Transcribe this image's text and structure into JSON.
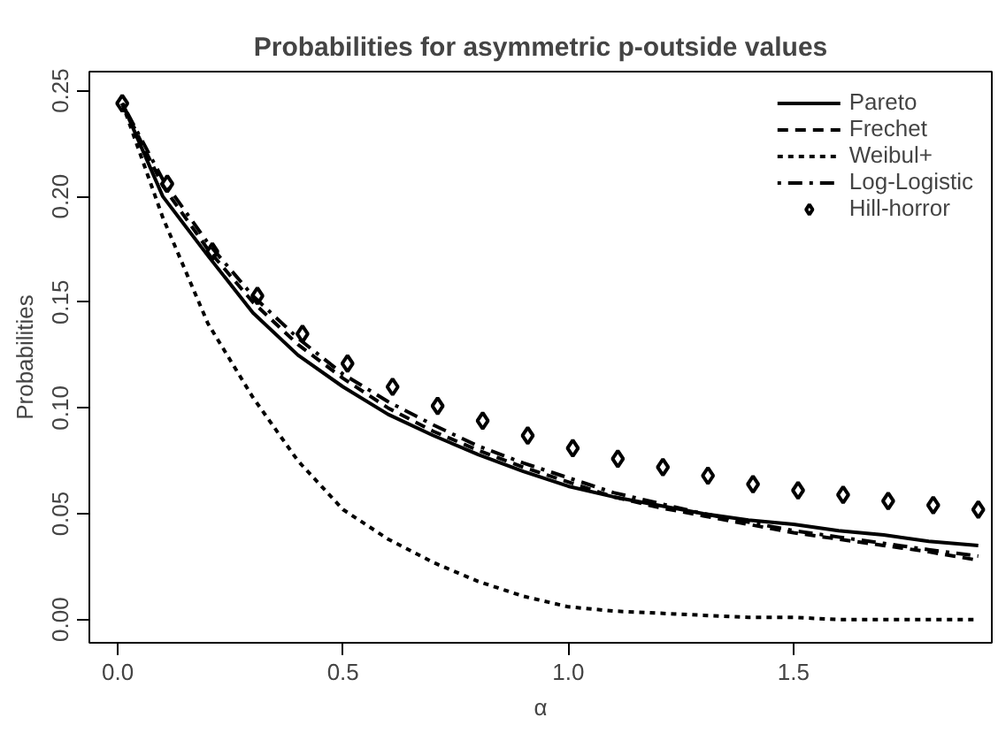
{
  "chart_data": {
    "type": "line",
    "title": "Probabilities for asymmetric p-outside values",
    "xlabel": "α",
    "ylabel": "Probabilities",
    "x": [
      0.01,
      0.1,
      0.2,
      0.3,
      0.4,
      0.5,
      0.6,
      0.7,
      0.8,
      0.9,
      1.0,
      1.1,
      1.2,
      1.3,
      1.4,
      1.5,
      1.6,
      1.7,
      1.8,
      1.91
    ],
    "xlim": [
      -0.063,
      1.94
    ],
    "ylim": [
      -0.011,
      0.259
    ],
    "xticks": [
      {
        "value": 0,
        "label": "0.0"
      },
      0.5,
      {
        "value": 1,
        "label": "1.0"
      },
      1.5
    ],
    "yticks": [
      {
        "value": 0,
        "label": "0.00"
      },
      0.05,
      {
        "value": 0.1,
        "label": "0.10"
      },
      0.15,
      {
        "value": 0.2,
        "label": "0.20"
      },
      0.25
    ],
    "grid": false,
    "legend": "top right",
    "series": [
      {
        "name": "Pareto",
        "color": "#000000",
        "line_style": "solid",
        "values": [
          0.244,
          0.2,
          0.172,
          0.145,
          0.125,
          0.11,
          0.097,
          0.087,
          0.078,
          0.07,
          0.063,
          0.058,
          0.054,
          0.05,
          0.047,
          0.045,
          0.042,
          0.04,
          0.037,
          0.035
        ]
      },
      {
        "name": "Frechet",
        "color": "#000000",
        "line_style": "dashed",
        "values": [
          0.244,
          0.205,
          0.175,
          0.15,
          0.13,
          0.114,
          0.1,
          0.089,
          0.08,
          0.072,
          0.065,
          0.058,
          0.053,
          0.049,
          0.045,
          0.041,
          0.038,
          0.035,
          0.032,
          0.028
        ]
      },
      {
        "name": "Weibul+",
        "color": "#000000",
        "line_style": "dotted",
        "values": [
          0.244,
          0.19,
          0.14,
          0.105,
          0.075,
          0.052,
          0.038,
          0.027,
          0.018,
          0.011,
          0.006,
          0.004,
          0.003,
          0.002,
          0.001,
          0.001,
          0.0,
          0.0,
          0.0,
          0.0
        ]
      },
      {
        "name": "Log-Logistic",
        "color": "#000000",
        "line_style": "dashdot",
        "values": [
          0.244,
          0.208,
          0.178,
          0.153,
          0.133,
          0.116,
          0.103,
          0.092,
          0.082,
          0.074,
          0.067,
          0.06,
          0.055,
          0.05,
          0.046,
          0.042,
          0.039,
          0.036,
          0.033,
          0.03
        ]
      },
      {
        "name": "Hill-horror",
        "type": "scatter",
        "marker": "diamond",
        "color": "#000000",
        "x": [
          0.01,
          0.11,
          0.21,
          0.31,
          0.41,
          0.51,
          0.61,
          0.71,
          0.81,
          0.91,
          1.01,
          1.11,
          1.21,
          1.31,
          1.41,
          1.51,
          1.61,
          1.71,
          1.81,
          1.91
        ],
        "values": [
          0.244,
          0.206,
          0.174,
          0.153,
          0.135,
          0.121,
          0.11,
          0.101,
          0.094,
          0.087,
          0.081,
          0.076,
          0.072,
          0.068,
          0.064,
          0.061,
          0.059,
          0.056,
          0.054,
          0.052
        ]
      }
    ]
  }
}
